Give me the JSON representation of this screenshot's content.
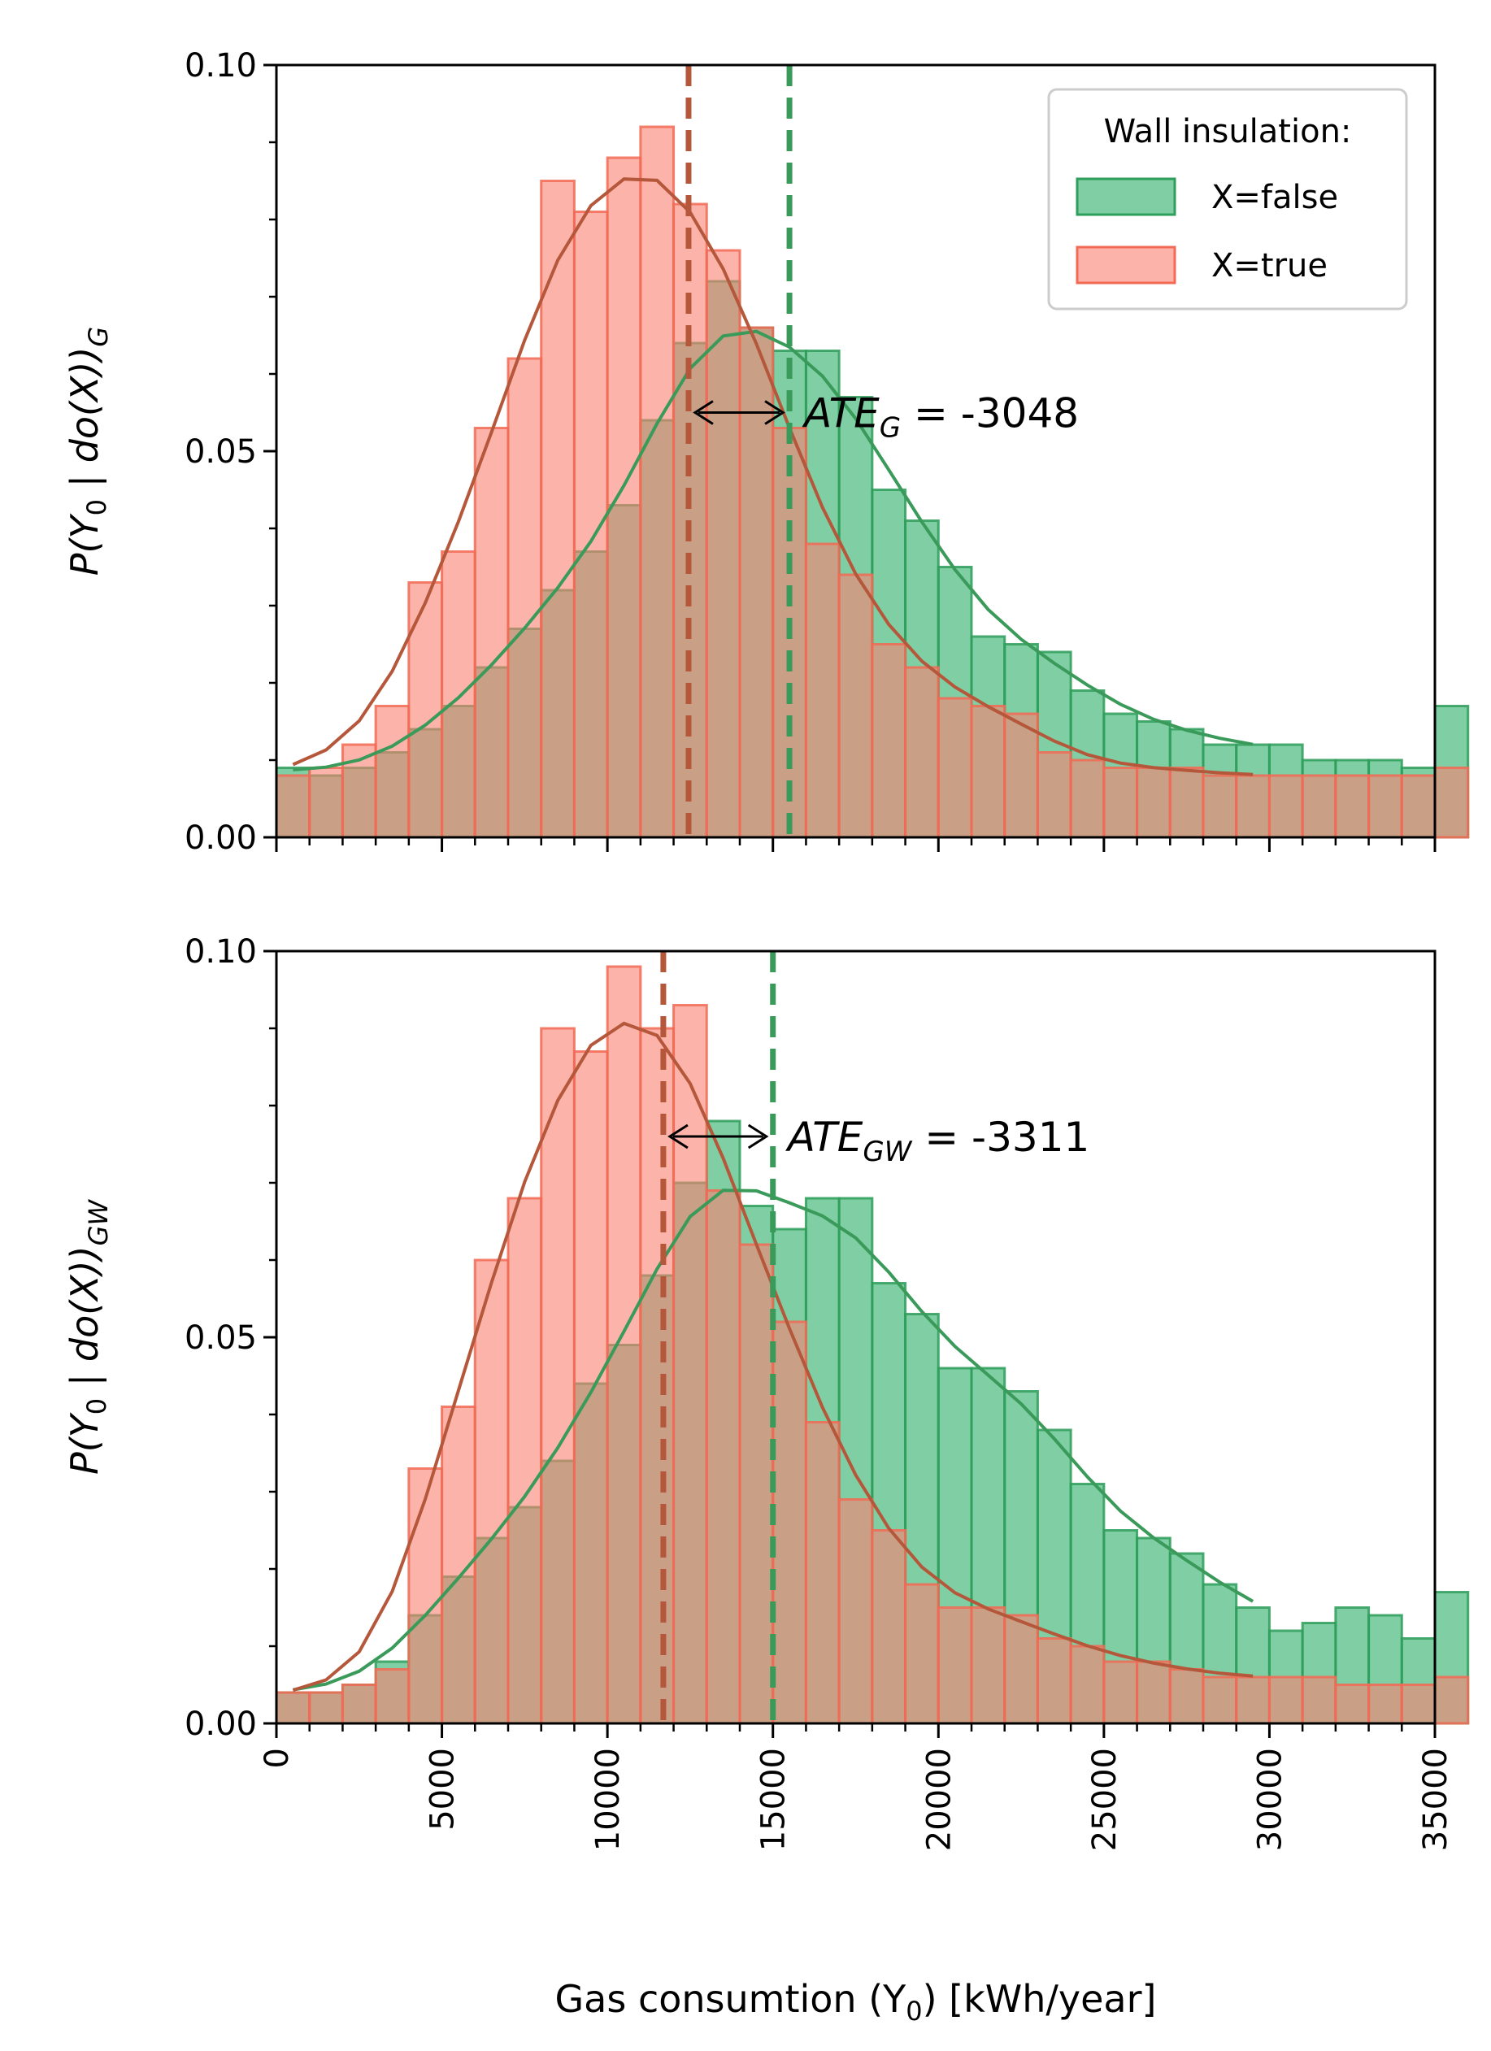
{
  "colors": {
    "false_bar": "#3cb371",
    "false_bar_edge": "#2e9e5b",
    "true_bar": "#fa8072",
    "true_bar_edge": "#f26a55",
    "false_line": "#3a9a5a",
    "true_line": "#b5573a"
  },
  "legend": {
    "title": "Wall insulation:",
    "items": [
      "X=false",
      "X=true"
    ]
  },
  "chart_data": [
    {
      "type": "bar",
      "overlay": "histogram with density curves",
      "panel": "top",
      "ylabel_parts": {
        "main": "P(Y",
        "sub0": "0",
        "mid": " | do(X))",
        "sub": "G"
      },
      "xlim": [
        0,
        35000
      ],
      "ylim": [
        0,
        0.1
      ],
      "yticks": [
        0.0,
        0.05,
        0.1
      ],
      "ytick_labels": [
        "0.00",
        "0.05",
        "0.10"
      ],
      "bin_width": 1000,
      "series": [
        {
          "name": "X=false",
          "values": [
            0.009,
            0.008,
            0.009,
            0.011,
            0.014,
            0.017,
            0.022,
            0.027,
            0.032,
            0.037,
            0.043,
            0.054,
            0.064,
            0.072,
            0.066,
            0.063,
            0.063,
            0.057,
            0.045,
            0.041,
            0.035,
            0.026,
            0.025,
            0.024,
            0.019,
            0.016,
            0.015,
            0.014,
            0.012,
            0.012,
            0.012,
            0.01,
            0.01,
            0.01,
            0.009,
            0.017
          ],
          "mean": 15500
        },
        {
          "name": "X=true",
          "values": [
            0.008,
            0.009,
            0.012,
            0.017,
            0.033,
            0.037,
            0.053,
            0.062,
            0.085,
            0.081,
            0.088,
            0.092,
            0.082,
            0.076,
            0.066,
            0.053,
            0.038,
            0.034,
            0.025,
            0.022,
            0.018,
            0.017,
            0.016,
            0.011,
            0.01,
            0.009,
            0.009,
            0.009,
            0.008,
            0.008,
            0.008,
            0.008,
            0.008,
            0.008,
            0.008,
            0.009
          ],
          "mean": 12452
        }
      ],
      "annotation": {
        "main": "ATE",
        "sub": "G",
        "value": " = -3048"
      }
    },
    {
      "type": "bar",
      "overlay": "histogram with density curves",
      "panel": "bottom",
      "ylabel_parts": {
        "main": "P(Y",
        "sub0": "0",
        "mid": " | do(X))",
        "sub": "GW"
      },
      "xlabel_parts": {
        "main": "Gas consumtion (Y",
        "sub0": "0",
        "tail": ") [kWh/year]"
      },
      "xlim": [
        0,
        35000
      ],
      "ylim": [
        0,
        0.1
      ],
      "xticks": [
        0,
        5000,
        10000,
        15000,
        20000,
        25000,
        30000,
        35000
      ],
      "xtick_labels": [
        "0",
        "5000",
        "10000",
        "15000",
        "20000",
        "25000",
        "30000",
        "35000"
      ],
      "yticks": [
        0.0,
        0.05,
        0.1
      ],
      "ytick_labels": [
        "0.00",
        "0.05",
        "0.10"
      ],
      "bin_width": 1000,
      "series": [
        {
          "name": "X=false",
          "values": [
            0.004,
            0.004,
            0.005,
            0.008,
            0.014,
            0.019,
            0.024,
            0.028,
            0.034,
            0.044,
            0.049,
            0.058,
            0.07,
            0.078,
            0.067,
            0.064,
            0.068,
            0.068,
            0.057,
            0.053,
            0.046,
            0.046,
            0.043,
            0.038,
            0.031,
            0.025,
            0.024,
            0.022,
            0.018,
            0.015,
            0.012,
            0.013,
            0.015,
            0.014,
            0.011,
            0.017
          ],
          "mean": 15000
        },
        {
          "name": "X=true",
          "values": [
            0.004,
            0.004,
            0.005,
            0.007,
            0.033,
            0.041,
            0.06,
            0.068,
            0.09,
            0.087,
            0.098,
            0.09,
            0.093,
            0.069,
            0.062,
            0.052,
            0.039,
            0.029,
            0.025,
            0.018,
            0.015,
            0.015,
            0.014,
            0.011,
            0.01,
            0.008,
            0.008,
            0.007,
            0.006,
            0.006,
            0.006,
            0.006,
            0.005,
            0.005,
            0.005,
            0.006
          ],
          "mean": 11689
        }
      ],
      "annotation": {
        "main": "ATE",
        "sub": "GW",
        "value": " = -3311"
      }
    }
  ]
}
